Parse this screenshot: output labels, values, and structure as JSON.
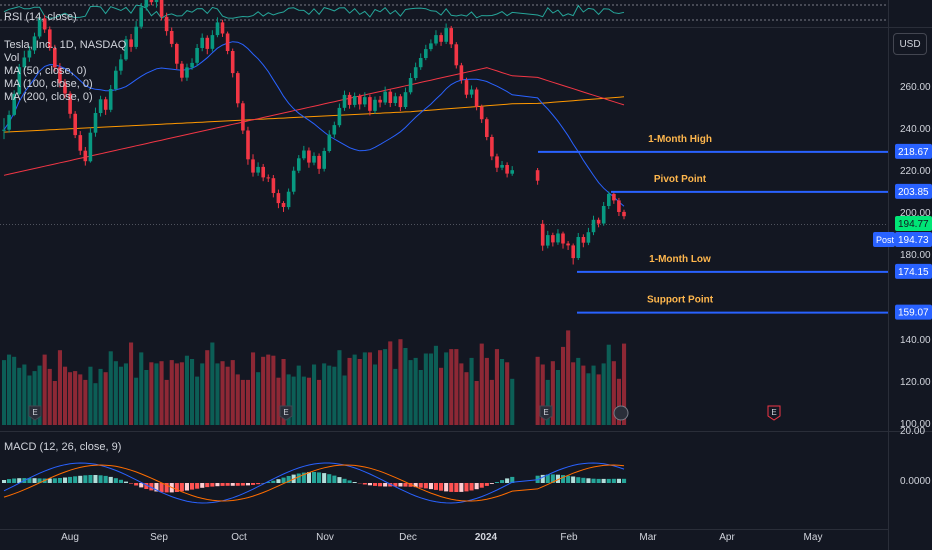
{
  "rsi_legend": "RSI (14, close)",
  "legend": {
    "symbol": "Tesla, Inc., 1D, NASDAQ",
    "vol": "Vol",
    "ma50": "MA (50, close, 0)",
    "ma100": "MA (100, close, 0)",
    "ma200": "MA (200, close, 0)"
  },
  "macd_legend": "MACD (12, 26, close, 9)",
  "currency_button": "USD",
  "post_badge": "Post",
  "colors": {
    "background": "#131722",
    "up": "#089981",
    "down": "#f23645",
    "ma50": "#2962ff",
    "ma100": "#f23645",
    "ma200": "#ff9800",
    "level_line": "#2962ff",
    "annotation_text": "#ffb74d"
  },
  "chart_data": {
    "type": "candlestick",
    "x_tick_labels": [
      "Aug",
      "Sep",
      "Oct",
      "Nov",
      "Dec",
      "2024",
      "Feb",
      "Mar",
      "Apr",
      "May"
    ],
    "y_tick_labels": [
      "260.00",
      "240.00",
      "220.00",
      "200.00",
      "180.00",
      "140.00",
      "120.00",
      "100.00"
    ],
    "y_range": [
      100,
      290
    ],
    "macd_y_labels": [
      "20.00",
      "0.0000"
    ],
    "price_badges": [
      {
        "label": "218.67",
        "kind": "level"
      },
      {
        "label": "203.85",
        "kind": "level"
      },
      {
        "label": "194.77",
        "kind": "last"
      },
      {
        "label": "194.73",
        "kind": "post"
      },
      {
        "label": "174.15",
        "kind": "level"
      },
      {
        "label": "159.07",
        "kind": "level"
      }
    ],
    "annotations": [
      {
        "text": "1-Month High",
        "value": 218.67
      },
      {
        "text": "Pivot Point",
        "value": 203.85
      },
      {
        "text": "1-Month Low",
        "value": 174.15
      },
      {
        "text": "Support Point",
        "value": 159.07
      }
    ],
    "earnings_markers": [
      "E",
      "E",
      "E",
      "E"
    ],
    "candles": [
      [
        226.5,
        226.9,
        231.2,
        223.4
      ],
      [
        226.9,
        232.4,
        234.0,
        225.8
      ],
      [
        232.4,
        240.2,
        241.5,
        231.9
      ],
      [
        240.2,
        250.1,
        251.3,
        239.6
      ],
      [
        250.1,
        253.7,
        256.2,
        248.7
      ],
      [
        253.7,
        256.3,
        257.9,
        252.1
      ],
      [
        256.3,
        261.5,
        262.9,
        255.0
      ],
      [
        261.5,
        268.2,
        270.1,
        260.7
      ],
      [
        268.2,
        264.1,
        269.5,
        262.8
      ],
      [
        264.1,
        257.2,
        265.2,
        256.2
      ],
      [
        257.2,
        250.0,
        258.4,
        248.5
      ],
      [
        250.0,
        244.1,
        251.6,
        242.6
      ],
      [
        244.1,
        240.3,
        245.7,
        238.7
      ],
      [
        240.3,
        232.8,
        241.2,
        231.1
      ],
      [
        232.8,
        224.9,
        233.8,
        223.8
      ],
      [
        224.9,
        219.1,
        226.4,
        217.5
      ],
      [
        219.1,
        215.2,
        220.5,
        213.6
      ],
      [
        215.2,
        225.8,
        227.6,
        214.7
      ],
      [
        225.8,
        233.1,
        235.1,
        224.3
      ],
      [
        233.1,
        238.2,
        239.5,
        231.8
      ],
      [
        238.2,
        234.3,
        239.1,
        232.4
      ],
      [
        234.3,
        242.0,
        243.5,
        233.4
      ],
      [
        242.0,
        248.8,
        250.4,
        241.2
      ],
      [
        248.8,
        253.0,
        254.9,
        247.3
      ],
      [
        253.0,
        260.4,
        261.7,
        252.4
      ],
      [
        260.4,
        257.6,
        262.4,
        255.8
      ],
      [
        257.6,
        265.1,
        267.2,
        256.8
      ],
      [
        265.1,
        272.3,
        273.9,
        264.3
      ],
      [
        272.3,
        277.9,
        279.6,
        271.1
      ],
      [
        277.9,
        274.2,
        279.3,
        273.1
      ],
      [
        274.2,
        277.0,
        278.3,
        272.2
      ],
      [
        277.0,
        268.8,
        277.6,
        267.4
      ],
      [
        268.8,
        263.5,
        270.3,
        261.8
      ],
      [
        263.5,
        258.7,
        264.8,
        257.5
      ],
      [
        258.7,
        251.4,
        259.2,
        249.4
      ],
      [
        251.4,
        246.2,
        252.4,
        244.8
      ],
      [
        246.2,
        250.0,
        251.4,
        245.0
      ],
      [
        250.0,
        251.7,
        253.4,
        249.1
      ],
      [
        251.7,
        257.2,
        258.7,
        250.6
      ],
      [
        257.2,
        261.0,
        262.6,
        256.0
      ],
      [
        261.0,
        256.9,
        261.9,
        254.9
      ],
      [
        256.9,
        262.0,
        263.8,
        255.9
      ],
      [
        262.0,
        266.7,
        268.6,
        261.2
      ],
      [
        266.7,
        262.6,
        267.7,
        261.3
      ],
      [
        262.6,
        256.1,
        263.3,
        254.9
      ],
      [
        256.1,
        247.9,
        257.0,
        246.3
      ],
      [
        247.9,
        236.7,
        248.6,
        235.2
      ],
      [
        236.7,
        226.6,
        237.6,
        225.3
      ],
      [
        226.6,
        215.9,
        228.0,
        213.9
      ],
      [
        215.9,
        211.0,
        217.8,
        209.5
      ],
      [
        211.0,
        213.1,
        214.8,
        209.8
      ],
      [
        213.1,
        209.2,
        214.2,
        207.8
      ],
      [
        209.2,
        208.9,
        210.3,
        207.5
      ],
      [
        208.9,
        203.4,
        210.1,
        201.8
      ],
      [
        203.4,
        199.7,
        204.7,
        197.8
      ],
      [
        199.7,
        198.2,
        200.4,
        196.4
      ],
      [
        198.2,
        203.9,
        205.1,
        197.3
      ],
      [
        203.9,
        211.7,
        213.2,
        202.9
      ],
      [
        211.7,
        216.3,
        217.5,
        210.8
      ],
      [
        216.3,
        219.2,
        220.9,
        215.6
      ],
      [
        219.2,
        214.7,
        220.3,
        212.8
      ],
      [
        214.7,
        217.2,
        218.5,
        213.7
      ],
      [
        217.2,
        212.4,
        218.1,
        210.5
      ],
      [
        212.4,
        219.0,
        220.2,
        211.4
      ],
      [
        219.0,
        225.1,
        226.7,
        218.4
      ],
      [
        225.1,
        228.6,
        229.9,
        223.9
      ],
      [
        228.6,
        235.0,
        236.6,
        227.8
      ],
      [
        235.0,
        239.8,
        241.4,
        233.9
      ],
      [
        239.8,
        236.1,
        240.8,
        234.7
      ],
      [
        236.1,
        239.4,
        240.7,
        235.2
      ],
      [
        239.4,
        236.3,
        240.2,
        234.4
      ],
      [
        236.3,
        239.0,
        240.8,
        235.3
      ],
      [
        239.0,
        233.9,
        239.9,
        232.2
      ],
      [
        233.9,
        238.0,
        239.2,
        232.8
      ],
      [
        238.0,
        237.0,
        239.4,
        235.2
      ],
      [
        237.0,
        241.0,
        242.9,
        236.1
      ],
      [
        241.0,
        236.8,
        241.8,
        235.3
      ],
      [
        236.8,
        239.3,
        240.6,
        235.7
      ],
      [
        239.3,
        235.3,
        240.1,
        233.8
      ],
      [
        235.3,
        240.8,
        242.5,
        234.6
      ],
      [
        240.8,
        246.1,
        247.9,
        240.0
      ],
      [
        246.1,
        250.1,
        251.8,
        245.2
      ],
      [
        250.1,
        253.5,
        255.2,
        249.1
      ],
      [
        253.5,
        256.8,
        258.4,
        252.7
      ],
      [
        256.8,
        258.9,
        260.4,
        256.0
      ],
      [
        258.9,
        262.0,
        263.8,
        258.1
      ],
      [
        262.0,
        259.5,
        262.9,
        258.0
      ],
      [
        259.5,
        264.6,
        266.3,
        258.7
      ],
      [
        264.6,
        258.6,
        265.4,
        257.2
      ],
      [
        258.6,
        250.8,
        259.4,
        249.6
      ],
      [
        250.8,
        245.3,
        251.7,
        244.0
      ],
      [
        245.3,
        239.9,
        246.2,
        238.6
      ],
      [
        239.9,
        241.8,
        243.3,
        238.7
      ],
      [
        241.8,
        235.4,
        242.6,
        234.1
      ],
      [
        235.4,
        230.8,
        236.2,
        229.4
      ],
      [
        230.8,
        224.2,
        231.5,
        223.0
      ],
      [
        224.2,
        217.0,
        225.1,
        215.6
      ],
      [
        217.0,
        212.8,
        218.0,
        211.2
      ],
      [
        212.8,
        213.8,
        215.3,
        211.9
      ],
      [
        213.8,
        210.6,
        214.8,
        209.2
      ],
      [
        210.6,
        211.9,
        213.4,
        209.8
      ],
      [
        211.9,
        208.0,
        212.7,
        206.5
      ],
      [
        192.0,
        183.9,
        193.4,
        182.0
      ],
      [
        183.9,
        187.8,
        189.4,
        182.9
      ],
      [
        187.8,
        185.1,
        188.7,
        183.6
      ],
      [
        185.1,
        188.4,
        190.0,
        184.2
      ],
      [
        188.4,
        184.7,
        189.1,
        182.8
      ],
      [
        184.7,
        184.0,
        185.6,
        182.3
      ],
      [
        184.0,
        179.3,
        184.7,
        176.9
      ],
      [
        179.3,
        187.1,
        188.6,
        178.6
      ],
      [
        187.1,
        185.0,
        188.1,
        183.3
      ],
      [
        185.0,
        188.9,
        190.5,
        184.1
      ],
      [
        188.9,
        193.5,
        195.0,
        187.8
      ],
      [
        193.5,
        192.1,
        194.3,
        190.7
      ],
      [
        192.1,
        198.6,
        200.1,
        191.3
      ],
      [
        198.6,
        203.1,
        204.0,
        197.5
      ],
      [
        203.1,
        200.7,
        203.8,
        199.4
      ],
      [
        200.7,
        196.4,
        201.6,
        194.9
      ],
      [
        196.4,
        194.8,
        197.2,
        193.7
      ]
    ],
    "volumes": [
      0.59,
      0.64,
      0.62,
      0.52,
      0.55,
      0.45,
      0.49,
      0.54,
      0.64,
      0.51,
      0.4,
      0.68,
      0.53,
      0.48,
      0.49,
      0.46,
      0.41,
      0.53,
      0.38,
      0.51,
      0.48,
      0.67,
      0.58,
      0.53,
      0.56,
      0.75,
      0.43,
      0.66,
      0.5,
      0.57,
      0.56,
      0.58,
      0.41,
      0.59,
      0.56,
      0.57,
      0.63,
      0.6,
      0.44,
      0.56,
      0.68,
      0.75,
      0.56,
      0.58,
      0.53,
      0.59,
      0.46,
      0.41,
      0.41,
      0.66,
      0.48,
      0.62,
      0.64,
      0.63,
      0.43,
      0.6,
      0.46,
      0.44,
      0.54,
      0.44,
      0.43,
      0.55,
      0.41,
      0.56,
      0.54,
      0.53,
      0.68,
      0.45,
      0.61,
      0.64,
      0.6,
      0.66,
      0.66,
      0.55,
      0.68,
      0.69,
      0.76,
      0.51,
      0.78,
      0.7,
      0.59,
      0.61,
      0.5,
      0.65,
      0.65,
      0.72,
      0.52,
      0.66,
      0.69,
      0.69,
      0.56,
      0.48,
      0.61,
      0.4,
      0.74,
      0.61,
      0.41,
      0.69,
      0.6,
      0.57,
      0.42,
      0.62,
      0.55,
      0.41,
      0.58,
      0.5,
      0.71,
      0.86,
      0.57,
      0.61,
      0.54,
      0.47,
      0.54,
      0.46,
      0.56,
      0.73,
      0.58,
      0.42,
      0.74
    ]
  }
}
